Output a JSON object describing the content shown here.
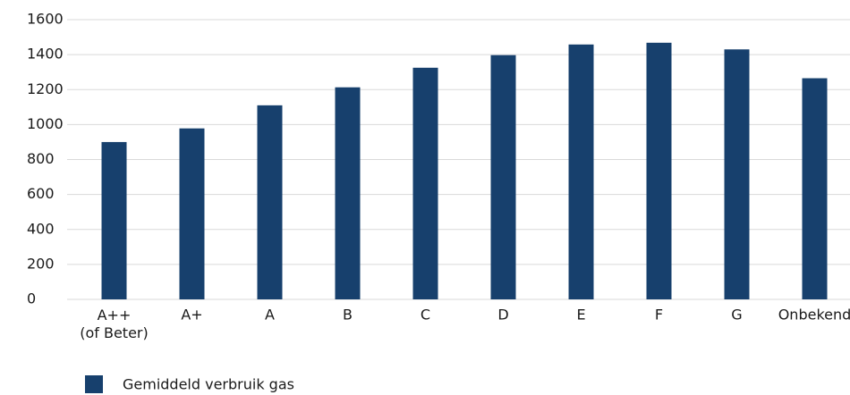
{
  "chart_data": {
    "type": "bar",
    "categories": [
      "A++\n(of Beter)",
      "A+",
      "A",
      "B",
      "C",
      "D",
      "E",
      "F",
      "G",
      "Onbekend"
    ],
    "series": [
      {
        "name": "Gemiddeld verbruik gas",
        "color": "#17406d",
        "values": [
          900,
          978,
          1110,
          1213,
          1325,
          1397,
          1458,
          1468,
          1430,
          1265
        ]
      }
    ],
    "ylim": [
      0,
      1600
    ],
    "yticks": [
      0,
      200,
      400,
      600,
      800,
      1000,
      1200,
      1400,
      1600
    ],
    "grid": true
  }
}
